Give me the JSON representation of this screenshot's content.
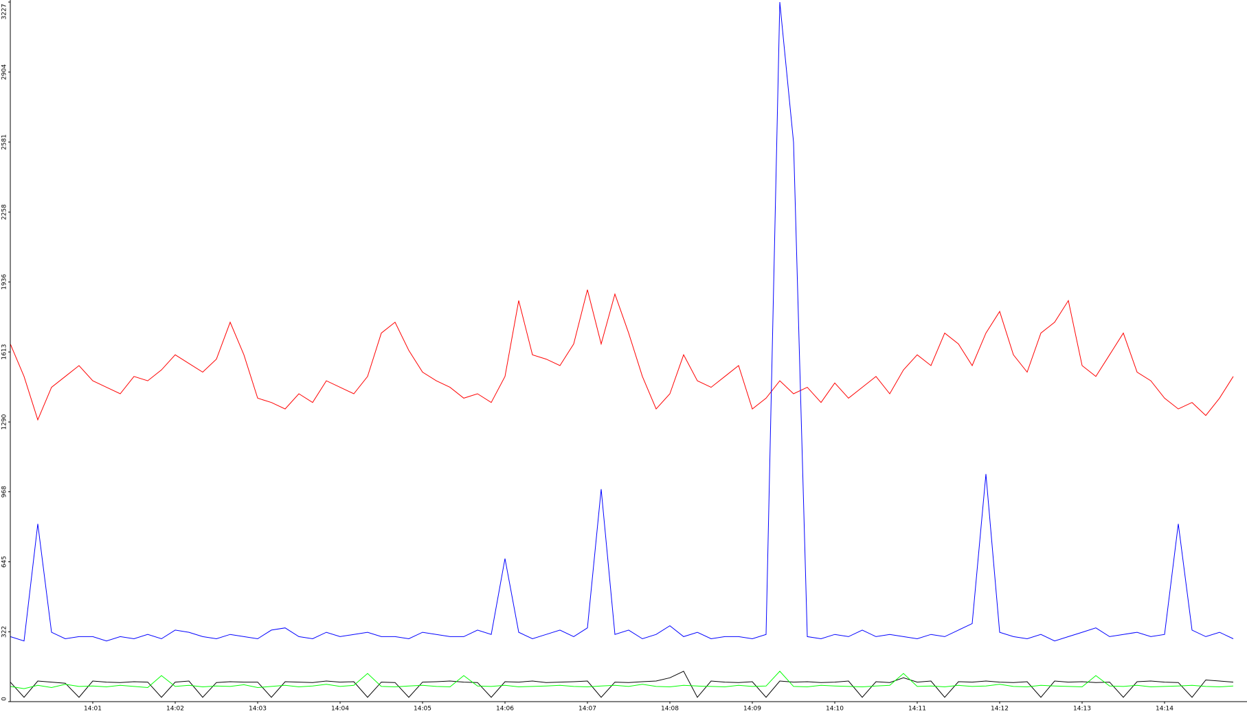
{
  "chart_data": {
    "type": "line",
    "categories": [
      null,
      null,
      null,
      null,
      null,
      null,
      "14:01",
      null,
      null,
      null,
      null,
      null,
      "14:02",
      null,
      null,
      null,
      null,
      null,
      "14:03",
      null,
      null,
      null,
      null,
      null,
      "14:04",
      null,
      null,
      null,
      null,
      null,
      "14:05",
      null,
      null,
      null,
      null,
      null,
      "14:06",
      null,
      null,
      null,
      null,
      null,
      "14:07",
      null,
      null,
      null,
      null,
      null,
      "14:08",
      null,
      null,
      null,
      null,
      null,
      "14:09",
      null,
      null,
      null,
      null,
      null,
      "14:10",
      null,
      null,
      null,
      null,
      null,
      "14:11",
      null,
      null,
      null,
      null,
      null,
      "14:12",
      null,
      null,
      null,
      null,
      null,
      "14:13",
      null,
      null,
      null,
      null,
      null,
      "14:14",
      null,
      null,
      null,
      null,
      null
    ],
    "ylim": [
      0,
      3227
    ],
    "yticks": [
      0,
      322,
      645,
      968,
      1290,
      1613,
      1936,
      2258,
      2581,
      2904,
      3227
    ],
    "series": [
      {
        "color": "#ff0000",
        "values": [
          1650,
          1500,
          1300,
          1450,
          1500,
          1550,
          1480,
          1450,
          1420,
          1500,
          1480,
          1530,
          1600,
          1560,
          1520,
          1580,
          1750,
          1600,
          1400,
          1380,
          1350,
          1420,
          1380,
          1480,
          1450,
          1420,
          1500,
          1700,
          1750,
          1620,
          1520,
          1480,
          1450,
          1400,
          1420,
          1380,
          1500,
          1850,
          1600,
          1580,
          1550,
          1650,
          1900,
          1650,
          1880,
          1700,
          1500,
          1350,
          1420,
          1600,
          1480,
          1450,
          1500,
          1550,
          1350,
          1400,
          1480,
          1420,
          1450,
          1380,
          1470,
          1400,
          1450,
          1500,
          1420,
          1530,
          1600,
          1550,
          1700,
          1650,
          1550,
          1700,
          1800,
          1600,
          1520,
          1700,
          1750,
          1850,
          1550,
          1500,
          1600,
          1700,
          1520,
          1480,
          1400,
          1350,
          1380,
          1320,
          1400,
          1500
        ]
      },
      {
        "color": "#0000ff",
        "values": [
          300,
          280,
          820,
          320,
          290,
          300,
          300,
          280,
          300,
          290,
          310,
          290,
          330,
          320,
          300,
          290,
          310,
          300,
          290,
          330,
          340,
          300,
          290,
          320,
          300,
          310,
          320,
          300,
          300,
          290,
          320,
          310,
          300,
          300,
          330,
          310,
          660,
          320,
          290,
          310,
          330,
          300,
          340,
          980,
          310,
          330,
          290,
          310,
          350,
          300,
          320,
          290,
          300,
          300,
          290,
          310,
          3227,
          2580,
          300,
          290,
          310,
          300,
          330,
          300,
          310,
          300,
          290,
          310,
          300,
          330,
          360,
          1050,
          320,
          300,
          290,
          310,
          280,
          300,
          320,
          340,
          300,
          310,
          320,
          300,
          310,
          820,
          330,
          300,
          320,
          290
        ]
      },
      {
        "color": "#000000",
        "values": [
          90,
          20,
          95,
          90,
          85,
          20,
          95,
          90,
          88,
          92,
          90,
          20,
          90,
          95,
          20,
          88,
          92,
          90,
          90,
          20,
          92,
          90,
          88,
          95,
          90,
          92,
          20,
          90,
          88,
          20,
          90,
          92,
          95,
          90,
          88,
          20,
          92,
          90,
          95,
          88,
          90,
          92,
          95,
          20,
          90,
          88,
          92,
          95,
          110,
          140,
          20,
          95,
          90,
          88,
          92,
          20,
          95,
          90,
          92,
          88,
          90,
          95,
          20,
          92,
          88,
          110,
          90,
          95,
          20,
          92,
          90,
          95,
          90,
          88,
          92,
          20,
          95,
          90,
          92,
          88,
          90,
          20,
          92,
          95,
          90,
          88,
          20,
          100,
          95,
          90
        ]
      },
      {
        "color": "#00ff00",
        "values": [
          70,
          60,
          75,
          65,
          80,
          70,
          72,
          68,
          75,
          70,
          65,
          120,
          70,
          75,
          68,
          72,
          70,
          78,
          65,
          70,
          75,
          68,
          72,
          80,
          70,
          75,
          130,
          70,
          68,
          72,
          75,
          70,
          68,
          120,
          72,
          70,
          75,
          68,
          70,
          72,
          75,
          70,
          68,
          72,
          75,
          70,
          80,
          70,
          68,
          75,
          72,
          70,
          68,
          75,
          70,
          72,
          140,
          70,
          68,
          75,
          72,
          70,
          68,
          72,
          75,
          130,
          70,
          72,
          68,
          75,
          70,
          72,
          80,
          70,
          68,
          75,
          72,
          70,
          68,
          120,
          72,
          70,
          75,
          68,
          70,
          72,
          75,
          70,
          68,
          72
        ]
      }
    ]
  }
}
